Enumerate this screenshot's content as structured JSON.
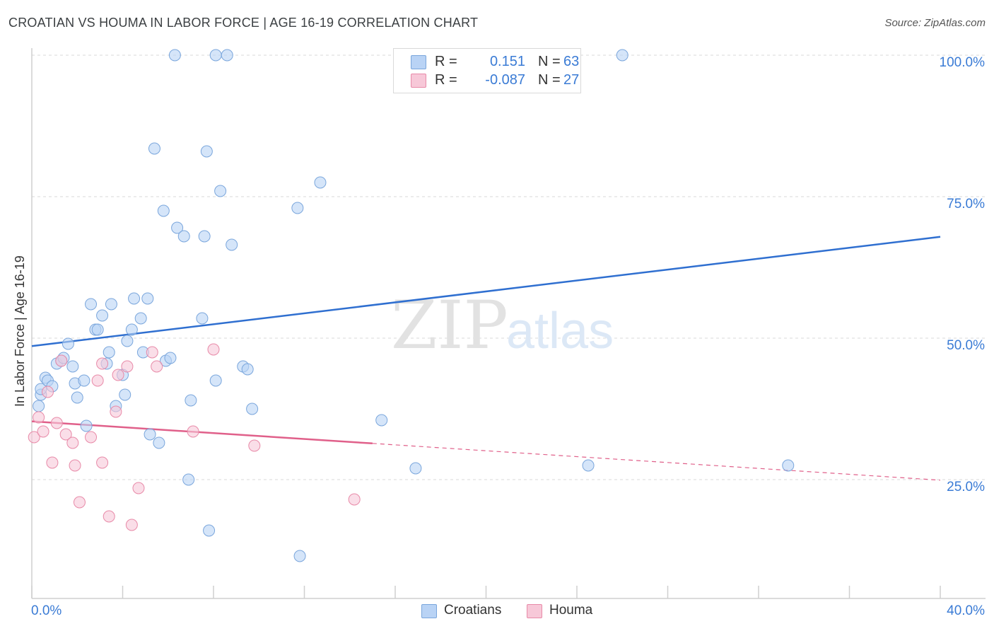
{
  "header": {
    "title": "CROATIAN VS HOUMA IN LABOR FORCE | AGE 16-19 CORRELATION CHART",
    "source": "Source: ZipAtlas.com"
  },
  "watermark": {
    "zip": "ZIP",
    "atlas": "atlas"
  },
  "legend": {
    "rows": [
      {
        "r_label": "R =",
        "r_value": "0.151",
        "n_label": "N =",
        "n_value": "63"
      },
      {
        "r_label": "R =",
        "r_value": "-0.087",
        "n_label": "N =",
        "n_value": "27"
      }
    ]
  },
  "bottom_legend": {
    "croatians": "Croatians",
    "houma": "Houma"
  },
  "colors": {
    "croatians_fill": "#b9d3f5",
    "croatians_stroke": "#7aa6dc",
    "croatians_line": "#2f6fd0",
    "houma_fill": "#f7c8d8",
    "houma_stroke": "#e88aa8",
    "houma_line": "#e0608a",
    "axis_text": "#3a7bd5",
    "grid": "#d8d8d8"
  },
  "chart_data": {
    "type": "scatter",
    "title": "CROATIAN VS HOUMA IN LABOR FORCE | AGE 16-19 CORRELATION CHART",
    "ylabel": "In Labor Force | Age 16-19",
    "xlabel": "",
    "xlim": [
      0,
      40
    ],
    "ylim": [
      4,
      102
    ],
    "x_tick_labels": [
      "0.0%",
      "40.0%"
    ],
    "y_ticks": [
      25,
      50,
      75,
      100
    ],
    "y_tick_labels": [
      "25.0%",
      "50.0%",
      "75.0%",
      "100.0%"
    ],
    "grid": true,
    "series": [
      {
        "name": "Croatians",
        "points": [
          [
            0.3,
            38
          ],
          [
            0.4,
            40
          ],
          [
            0.4,
            41
          ],
          [
            0.6,
            43
          ],
          [
            0.7,
            42.5
          ],
          [
            0.9,
            41.5
          ],
          [
            1.1,
            45.5
          ],
          [
            1.3,
            46
          ],
          [
            1.4,
            46.5
          ],
          [
            1.6,
            49
          ],
          [
            1.8,
            45
          ],
          [
            1.9,
            42
          ],
          [
            2.0,
            39.5
          ],
          [
            2.3,
            42.5
          ],
          [
            2.4,
            34.5
          ],
          [
            2.6,
            56
          ],
          [
            2.8,
            51.5
          ],
          [
            2.9,
            51.5
          ],
          [
            3.1,
            54
          ],
          [
            3.3,
            45.5
          ],
          [
            3.4,
            47.5
          ],
          [
            3.5,
            56
          ],
          [
            3.7,
            38
          ],
          [
            4.0,
            43.5
          ],
          [
            4.1,
            40
          ],
          [
            4.2,
            49.5
          ],
          [
            4.4,
            51.5
          ],
          [
            4.5,
            57
          ],
          [
            4.8,
            53.5
          ],
          [
            4.9,
            47.5
          ],
          [
            5.1,
            57
          ],
          [
            5.2,
            33
          ],
          [
            5.4,
            83.5
          ],
          [
            5.6,
            31.5
          ],
          [
            5.8,
            72.5
          ],
          [
            5.9,
            46
          ],
          [
            6.1,
            46.5
          ],
          [
            6.3,
            100
          ],
          [
            6.4,
            69.5
          ],
          [
            6.7,
            68
          ],
          [
            6.9,
            25
          ],
          [
            7.0,
            39
          ],
          [
            7.5,
            53.5
          ],
          [
            7.6,
            68
          ],
          [
            7.7,
            83
          ],
          [
            7.8,
            16
          ],
          [
            8.1,
            42.5
          ],
          [
            8.1,
            100
          ],
          [
            8.3,
            76
          ],
          [
            8.6,
            100
          ],
          [
            8.8,
            66.5
          ],
          [
            9.3,
            45
          ],
          [
            9.5,
            44.5
          ],
          [
            9.7,
            37.5
          ],
          [
            11.7,
            73
          ],
          [
            11.8,
            11.5
          ],
          [
            12.7,
            77.5
          ],
          [
            15.4,
            35.5
          ],
          [
            16.9,
            27
          ],
          [
            22.4,
            100
          ],
          [
            24.5,
            27.5
          ],
          [
            26.0,
            100
          ],
          [
            33.3,
            27.5
          ]
        ],
        "trend": {
          "x": [
            0,
            40
          ],
          "y": [
            48.6,
            67.9
          ]
        }
      },
      {
        "name": "Houma",
        "points": [
          [
            0.1,
            32.5
          ],
          [
            0.3,
            36
          ],
          [
            0.5,
            33.5
          ],
          [
            0.7,
            40.5
          ],
          [
            0.9,
            28
          ],
          [
            1.1,
            35
          ],
          [
            1.3,
            46
          ],
          [
            1.5,
            33
          ],
          [
            1.8,
            31.5
          ],
          [
            1.9,
            27.5
          ],
          [
            2.1,
            21
          ],
          [
            2.6,
            32.5
          ],
          [
            2.9,
            42.5
          ],
          [
            3.1,
            45.5
          ],
          [
            3.1,
            28
          ],
          [
            3.4,
            18.5
          ],
          [
            3.7,
            37
          ],
          [
            3.8,
            43.5
          ],
          [
            4.2,
            45
          ],
          [
            4.4,
            17
          ],
          [
            4.7,
            23.5
          ],
          [
            5.3,
            47.5
          ],
          [
            5.5,
            45
          ],
          [
            7.1,
            33.5
          ],
          [
            8.0,
            48
          ],
          [
            9.8,
            31
          ],
          [
            14.2,
            21.5
          ]
        ],
        "trend": {
          "x": [
            0,
            40
          ],
          "y": [
            35.3,
            24.9
          ]
        },
        "trend_solid_until_x": 15
      }
    ]
  }
}
